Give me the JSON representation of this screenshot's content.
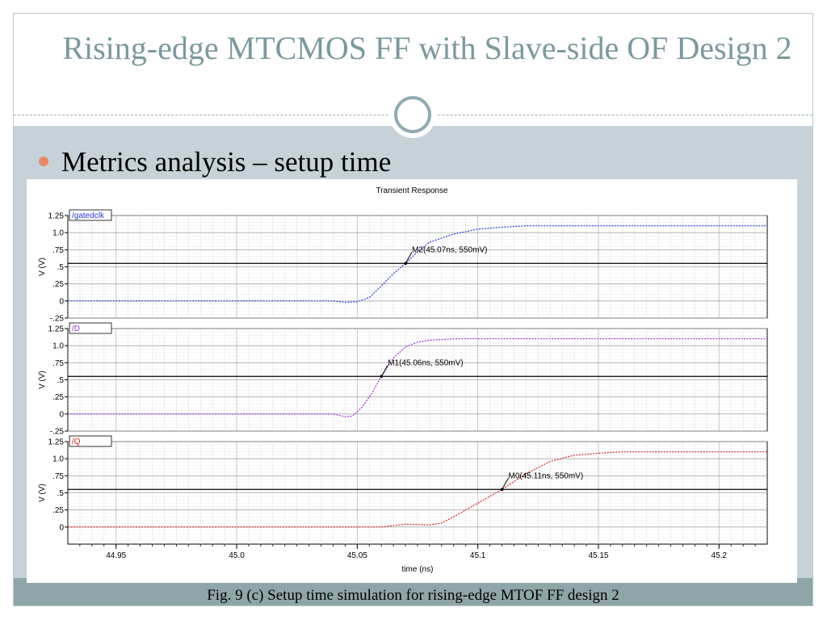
{
  "slide": {
    "title": "Rising-edge MTCMOS FF with Slave-side OF Design 2",
    "bullet": "Metrics analysis – setup time",
    "caption": "Fig. 9 (c) Setup time simulation for rising-edge MTOF FF design 2"
  },
  "colors": {
    "title": "#7b999c",
    "content_band": "#c6d2d8",
    "footer_band": "#8fa6a9",
    "bullet_dot": "#e8886b"
  },
  "chart_data": {
    "type": "line",
    "title": "Transient Response",
    "xlabel": "time (ns)",
    "xlim": [
      44.93,
      45.22
    ],
    "x_ticks": [
      "44.95",
      "45.0",
      "45.05",
      "45.1",
      "45.15",
      "45.2"
    ],
    "grid": true,
    "panels": [
      {
        "series_name": "/gatedclk",
        "color": "#2b35d8",
        "ylabel": "V (V)",
        "ylim": [
          -0.25,
          1.25
        ],
        "y_ticks": [
          "1.25",
          "1.0",
          ".75",
          ".5",
          ".25",
          "0",
          "-.25"
        ],
        "threshold": 0.55,
        "marker": {
          "label": "M2(45.07ns, 550mV)",
          "x": 45.07,
          "y": 0.55
        },
        "points": [
          [
            44.93,
            0
          ],
          [
            45.04,
            0
          ],
          [
            45.045,
            -0.02
          ],
          [
            45.05,
            -0.01
          ],
          [
            45.055,
            0.05
          ],
          [
            45.06,
            0.22
          ],
          [
            45.065,
            0.4
          ],
          [
            45.07,
            0.55
          ],
          [
            45.075,
            0.72
          ],
          [
            45.08,
            0.86
          ],
          [
            45.09,
            0.98
          ],
          [
            45.1,
            1.05
          ],
          [
            45.11,
            1.08
          ],
          [
            45.12,
            1.1
          ],
          [
            45.22,
            1.1
          ]
        ]
      },
      {
        "series_name": "/D",
        "color": "#9b30d9",
        "ylabel": "V (V)",
        "ylim": [
          -0.25,
          1.25
        ],
        "y_ticks": [
          "1.25",
          "1.0",
          ".75",
          ".5",
          ".25",
          "0",
          "-.25"
        ],
        "threshold": 0.55,
        "marker": {
          "label": "M1(45.06ns, 550mV)",
          "x": 45.06,
          "y": 0.55
        },
        "points": [
          [
            44.93,
            0
          ],
          [
            45.04,
            0
          ],
          [
            45.045,
            -0.04
          ],
          [
            45.048,
            -0.03
          ],
          [
            45.052,
            0.1
          ],
          [
            45.056,
            0.3
          ],
          [
            45.06,
            0.55
          ],
          [
            45.065,
            0.82
          ],
          [
            45.07,
            0.98
          ],
          [
            45.075,
            1.05
          ],
          [
            45.08,
            1.08
          ],
          [
            45.09,
            1.1
          ],
          [
            45.22,
            1.1
          ]
        ]
      },
      {
        "series_name": "/Q",
        "color": "#d42020",
        "ylabel": "V (V)",
        "ylim": [
          -0.25,
          1.25
        ],
        "y_ticks": [
          "1.25",
          "1.0",
          ".75",
          ".5",
          ".25",
          "0"
        ],
        "threshold": 0.55,
        "marker": {
          "label": "M0(45.11ns, 550mV)",
          "x": 45.11,
          "y": 0.55
        },
        "points": [
          [
            44.93,
            0
          ],
          [
            45.06,
            0
          ],
          [
            45.07,
            0.04
          ],
          [
            45.08,
            0.03
          ],
          [
            45.085,
            0.06
          ],
          [
            45.09,
            0.15
          ],
          [
            45.1,
            0.35
          ],
          [
            45.11,
            0.55
          ],
          [
            45.12,
            0.78
          ],
          [
            45.13,
            0.96
          ],
          [
            45.14,
            1.05
          ],
          [
            45.15,
            1.08
          ],
          [
            45.16,
            1.1
          ],
          [
            45.22,
            1.1
          ]
        ]
      }
    ]
  }
}
